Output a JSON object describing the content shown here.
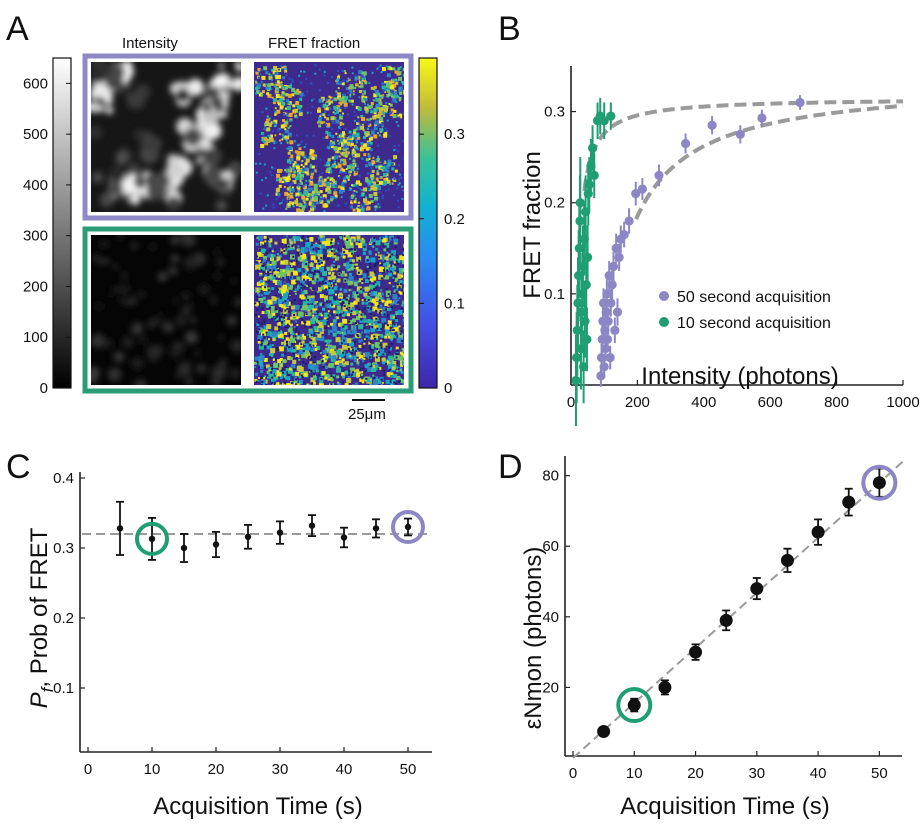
{
  "colors": {
    "purple": "#8c86c4",
    "green": "#1f9e73",
    "fit": "#9a9a9a",
    "frame_purple": "#8e88c6",
    "frame_green": "#2a9d77",
    "viridis_dark": "#3d2a8c",
    "viridis_mid": "#1aa3c8",
    "viridis_light": "#f2e61c",
    "point": "#111111"
  },
  "panels": {
    "A": {
      "letter": "A",
      "col_titles": [
        "Intensity",
        "FRET fraction"
      ],
      "gray_bar": {
        "min": 0,
        "max": 650,
        "ticks": [
          "600",
          "500",
          "400",
          "300",
          "200",
          "100",
          "0"
        ],
        "tick_values": [
          600,
          500,
          400,
          300,
          200,
          100,
          0
        ]
      },
      "color_bar": {
        "min": 0,
        "max": 0.39,
        "ticks": [
          "0.3",
          "0.2",
          "0.1",
          "0"
        ],
        "tick_values": [
          0.3,
          0.2,
          0.1,
          0
        ]
      },
      "scale_bar": "25μm"
    },
    "B": {
      "letter": "B"
    },
    "C": {
      "letter": "C",
      "highlight_colors": [
        "green",
        "purple"
      ]
    },
    "D": {
      "letter": "D"
    }
  },
  "chart_data": [
    {
      "id": "B",
      "type": "scatter",
      "xlabel": "Intensity (photons)",
      "ylabel": "FRET fraction",
      "xlim": [
        0,
        1000
      ],
      "ylim": [
        0,
        0.35
      ],
      "xticks": [
        "0",
        "200",
        "400",
        "600",
        "800",
        "1000"
      ],
      "xtick_values": [
        0,
        200,
        400,
        600,
        800,
        1000
      ],
      "yticks": [
        "0.1",
        "0.2",
        "0.3"
      ],
      "ytick_values": [
        0.1,
        0.2,
        0.3
      ],
      "legend_position": "center-right",
      "series": [
        {
          "name": "50 second acquisition",
          "color": "purple",
          "points": [
            [
              90,
              0.01,
              0.012
            ],
            [
              92,
              0.03,
              0.015
            ],
            [
              94,
              0.05,
              0.015
            ],
            [
              96,
              0.07,
              0.015
            ],
            [
              98,
              0.09,
              0.016
            ],
            [
              100,
              0.02,
              0.012
            ],
            [
              102,
              0.06,
              0.015
            ],
            [
              104,
              0.04,
              0.014
            ],
            [
              106,
              0.08,
              0.015
            ],
            [
              108,
              0.1,
              0.016
            ],
            [
              110,
              0.05,
              0.014
            ],
            [
              112,
              0.07,
              0.015
            ],
            [
              115,
              0.12,
              0.016
            ],
            [
              118,
              0.03,
              0.013
            ],
            [
              120,
              0.09,
              0.015
            ],
            [
              124,
              0.11,
              0.016
            ],
            [
              128,
              0.13,
              0.016
            ],
            [
              132,
              0.06,
              0.014
            ],
            [
              136,
              0.15,
              0.016
            ],
            [
              140,
              0.08,
              0.015
            ],
            [
              145,
              0.14,
              0.015
            ],
            [
              150,
              0.16,
              0.015
            ],
            [
              160,
              0.165,
              0.014
            ],
            [
              175,
              0.18,
              0.014
            ],
            [
              195,
              0.21,
              0.013
            ],
            [
              215,
              0.215,
              0.012
            ],
            [
              265,
              0.23,
              0.012
            ],
            [
              345,
              0.265,
              0.011
            ],
            [
              425,
              0.285,
              0.01
            ],
            [
              510,
              0.275,
              0.01
            ],
            [
              575,
              0.293,
              0.009
            ],
            [
              690,
              0.31,
              0.008
            ]
          ],
          "fit": {
            "amplitude": 0.335,
            "half": 85,
            "offset": 95
          }
        },
        {
          "name": "10 second acquisition",
          "color": "green",
          "points": [
            [
              15,
              0.005,
              0.05
            ],
            [
              17,
              0.03,
              0.05
            ],
            [
              19,
              0.06,
              0.05
            ],
            [
              21,
              0.09,
              0.05
            ],
            [
              23,
              0.12,
              0.05
            ],
            [
              25,
              0.15,
              0.05
            ],
            [
              27,
              0.18,
              0.05
            ],
            [
              28,
              0.2,
              0.05
            ],
            [
              30,
              0.04,
              0.045
            ],
            [
              32,
              0.08,
              0.045
            ],
            [
              34,
              0.1,
              0.045
            ],
            [
              36,
              0.13,
              0.045
            ],
            [
              38,
              0.02,
              0.04
            ],
            [
              40,
              0.16,
              0.04
            ],
            [
              42,
              0.07,
              0.04
            ],
            [
              44,
              0.19,
              0.04
            ],
            [
              46,
              0.11,
              0.04
            ],
            [
              48,
              0.05,
              0.035
            ],
            [
              50,
              0.14,
              0.035
            ],
            [
              52,
              0.21,
              0.035
            ],
            [
              55,
              0.22,
              0.03
            ],
            [
              60,
              0.24,
              0.03
            ],
            [
              65,
              0.26,
              0.025
            ],
            [
              70,
              0.23,
              0.025
            ],
            [
              80,
              0.29,
              0.02
            ],
            [
              88,
              0.295,
              0.02
            ],
            [
              100,
              0.29,
              0.02
            ],
            [
              120,
              0.295,
              0.015
            ]
          ],
          "fit": {
            "amplitude": 0.315,
            "half": 12,
            "offset": 15
          }
        }
      ]
    },
    {
      "id": "C",
      "type": "scatter",
      "xlabel": "Acquisition Time (s)",
      "ylabel_italic": "P",
      "ylabel_sub": "f",
      "ylabel_rest": ", Prob of FRET",
      "xlim": [
        0,
        55
      ],
      "ylim": [
        0,
        0.4
      ],
      "xticks": [
        "0",
        "10",
        "20",
        "30",
        "40",
        "50"
      ],
      "xtick_values": [
        0,
        10,
        20,
        30,
        40,
        50
      ],
      "yticks": [
        "0.1",
        "0.2",
        "0.3",
        "0.4"
      ],
      "ytick_values": [
        0.1,
        0.2,
        0.3,
        0.4
      ],
      "reference_line": 0.32,
      "x": [
        5,
        10,
        15,
        20,
        25,
        30,
        35,
        40,
        45,
        50
      ],
      "y": [
        0.328,
        0.313,
        0.3,
        0.305,
        0.316,
        0.322,
        0.332,
        0.315,
        0.328,
        0.33
      ],
      "err": [
        0.038,
        0.03,
        0.02,
        0.018,
        0.017,
        0.016,
        0.015,
        0.014,
        0.013,
        0.012
      ],
      "highlight": [
        10,
        50
      ]
    },
    {
      "id": "D",
      "type": "scatter",
      "xlabel": "Acquisition Time (s)",
      "ylabel": "εNmon (photons)",
      "xlim": [
        0,
        55
      ],
      "ylim": [
        0,
        85
      ],
      "xticks": [
        "0",
        "10",
        "20",
        "30",
        "40",
        "50"
      ],
      "xtick_values": [
        0,
        10,
        20,
        30,
        40,
        50
      ],
      "yticks": [
        "20",
        "40",
        "60",
        "80"
      ],
      "ytick_values": [
        20,
        40,
        60,
        80
      ],
      "reference_line_slope": 1.56,
      "x": [
        5,
        10,
        15,
        20,
        25,
        30,
        35,
        40,
        45,
        50
      ],
      "y": [
        7.5,
        15,
        20,
        30,
        39,
        48,
        56,
        64,
        72.5,
        78
      ],
      "err": [
        1,
        1.8,
        2,
        2.2,
        2.8,
        3,
        3.3,
        3.6,
        3.8,
        4
      ],
      "highlight": [
        10,
        50
      ]
    }
  ]
}
